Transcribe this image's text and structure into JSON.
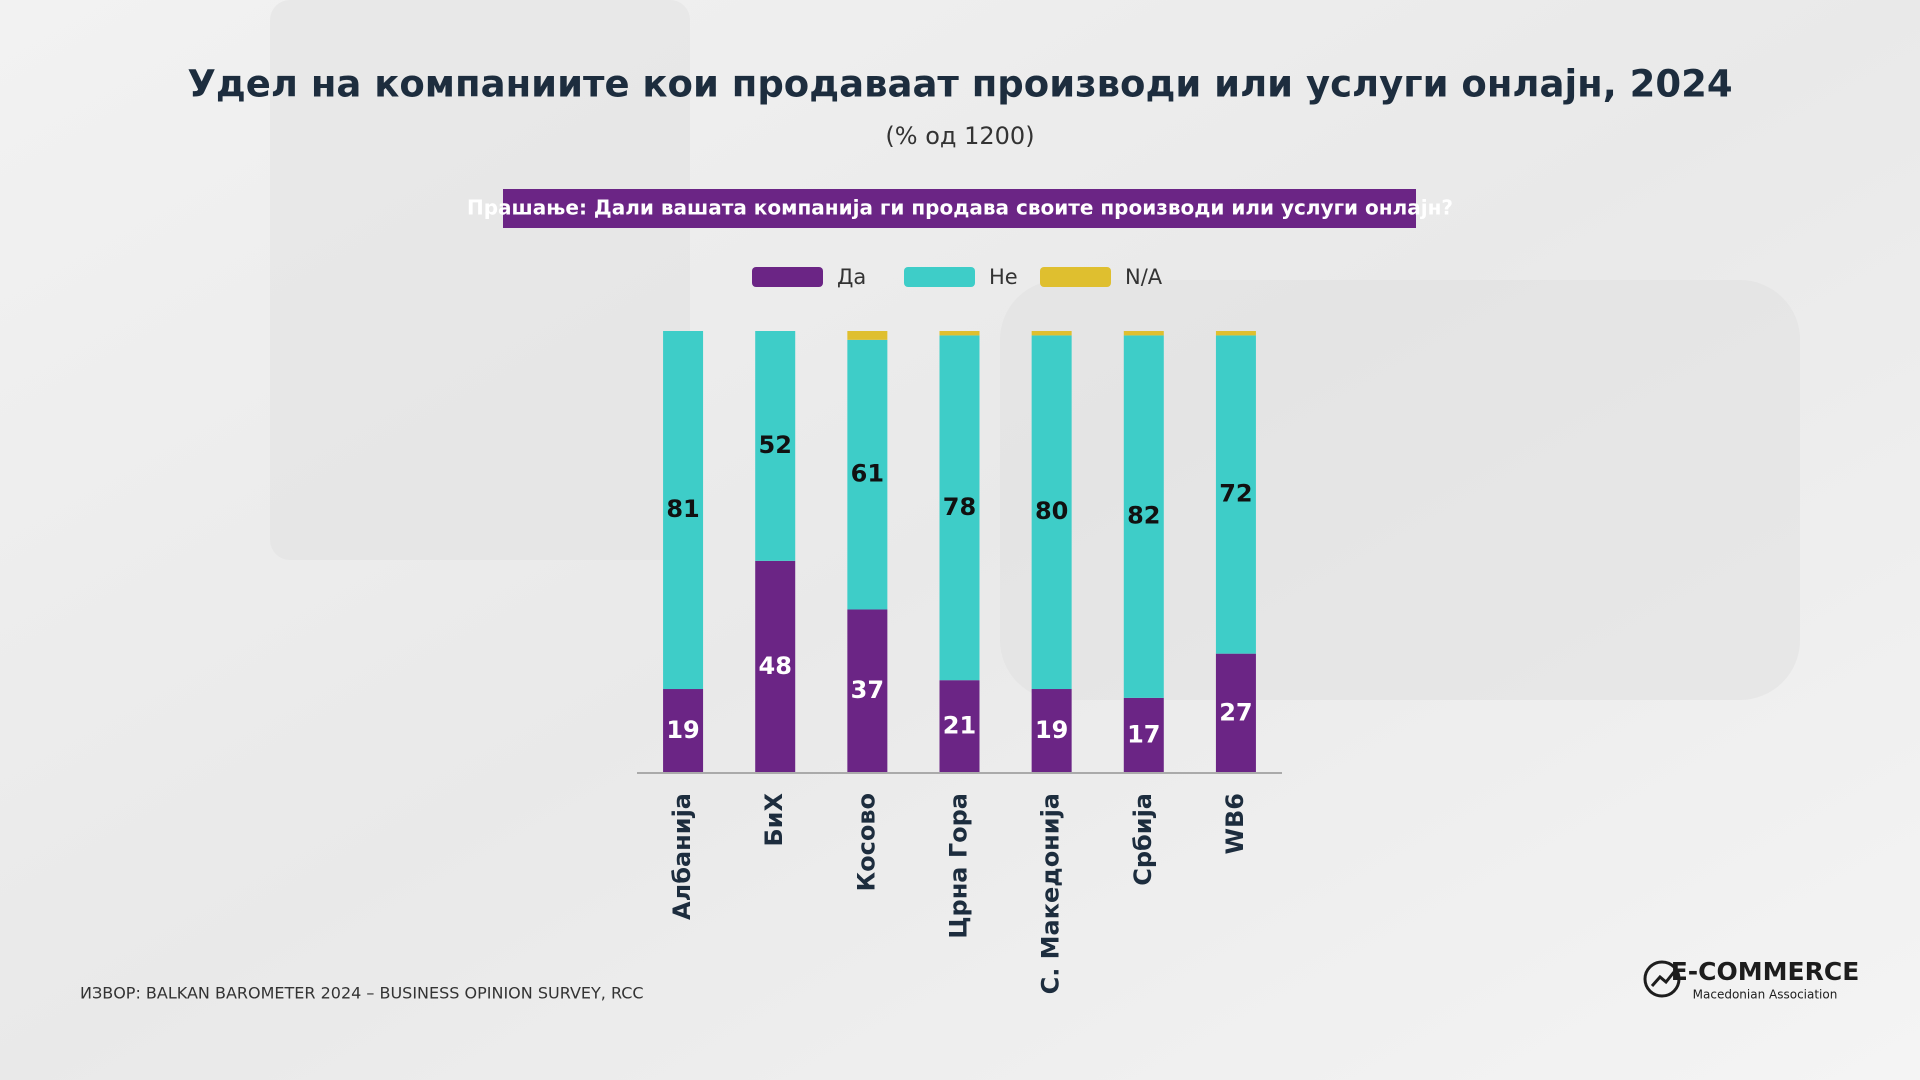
{
  "chart_data": {
    "type": "bar",
    "stacked": true,
    "title": "Удел на компаниите кои продаваат производи или услуги онлајн, 2024",
    "subtitle": "(% од 1200)",
    "question": "Прашање: Дали вашата компанија ги продава своите производи или услуги онлајн?",
    "categories": [
      "Албанија",
      "БиХ",
      "Косово",
      "Црна Гора",
      "С. Македонија",
      "Србија",
      "WB6"
    ],
    "series": [
      {
        "name": "Да",
        "color": "#6b2585",
        "values": [
          19,
          48,
          37,
          21,
          19,
          17,
          27
        ]
      },
      {
        "name": "Не",
        "color": "#3ecdc8",
        "values": [
          81,
          52,
          61,
          78,
          80,
          82,
          72
        ]
      },
      {
        "name": "N/A",
        "color": "#dfbf2f",
        "values": [
          0,
          0,
          2,
          1,
          1,
          1,
          1
        ]
      }
    ],
    "legend": "top"
  },
  "source": "ИЗВОР: BALKAN BAROMETER 2024 – BUSINESS OPINION SURVEY, RCC",
  "logo": {
    "title": "E-COMMERCE",
    "subtitle": "Macedonian Association"
  }
}
